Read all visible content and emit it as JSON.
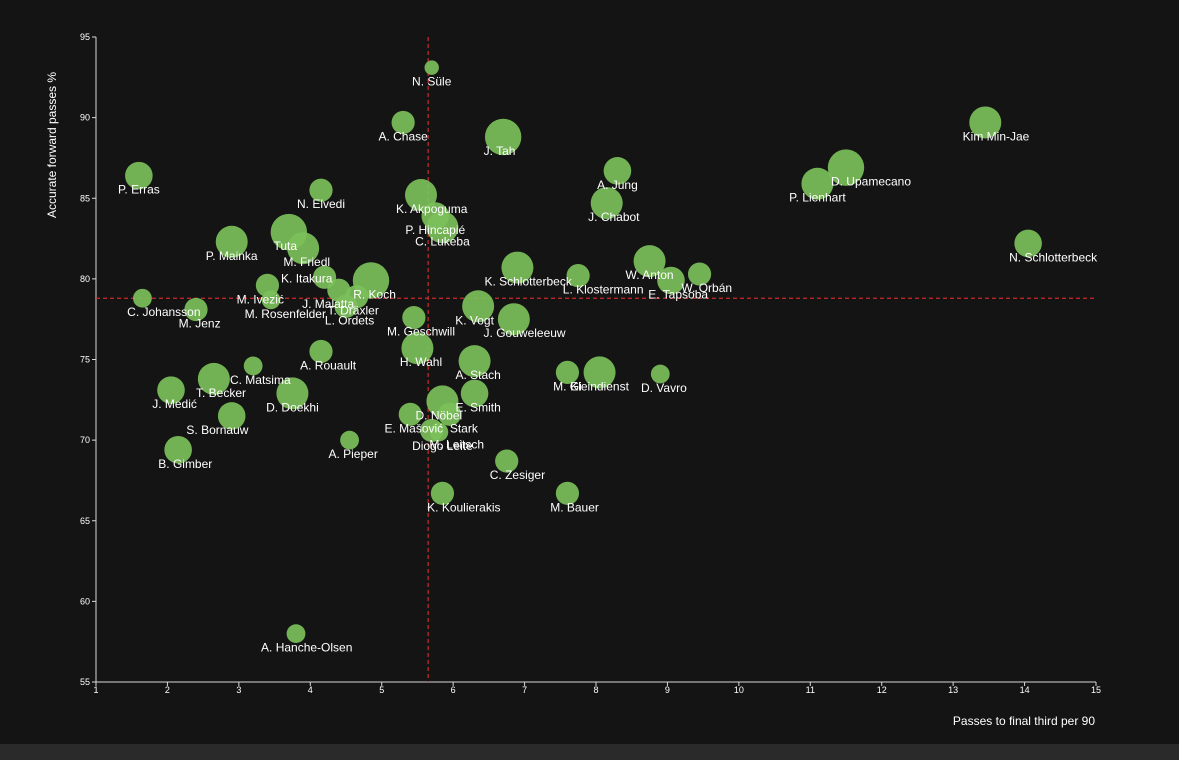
{
  "chart_data": {
    "type": "scatter",
    "xlabel": "Passes to final third per 90",
    "ylabel": "Accurate forward passes %",
    "xlim": [
      1,
      15
    ],
    "ylim": [
      55,
      95
    ],
    "xticks": [
      1,
      2,
      3,
      4,
      5,
      6,
      7,
      8,
      9,
      10,
      11,
      12,
      13,
      14,
      15
    ],
    "yticks": [
      55,
      60,
      65,
      70,
      75,
      80,
      85,
      90,
      95
    ],
    "reference_lines": {
      "x": 5.65,
      "y": 78.8,
      "style": "dashed",
      "color": "#cc2a2a"
    },
    "marker_color": "#7bc05a",
    "points": [
      {
        "name": "N. Süle",
        "x": 5.7,
        "y": 93.1,
        "size": 1
      },
      {
        "name": "A. Chase",
        "x": 5.3,
        "y": 89.7,
        "size": 3
      },
      {
        "name": "J. Tah",
        "x": 6.7,
        "y": 88.8,
        "size": 6
      },
      {
        "name": "Kim Min-Jae",
        "x": 13.45,
        "y": 89.7,
        "size": 5
      },
      {
        "name": "P. Erras",
        "x": 1.6,
        "y": 86.4,
        "size": 4
      },
      {
        "name": "A. Jung",
        "x": 8.3,
        "y": 86.7,
        "size": 4
      },
      {
        "name": "D. Upamecano",
        "x": 11.5,
        "y": 86.9,
        "size": 6
      },
      {
        "name": "P. Lienhart",
        "x": 11.1,
        "y": 85.9,
        "size": 5
      },
      {
        "name": "N. Elvedi",
        "x": 4.15,
        "y": 85.5,
        "size": 3
      },
      {
        "name": "K. Akpoguma",
        "x": 5.55,
        "y": 85.2,
        "size": 5
      },
      {
        "name": "J. Chabot",
        "x": 8.15,
        "y": 84.7,
        "size": 5
      },
      {
        "name": "P. Hincapié",
        "x": 5.75,
        "y": 83.9,
        "size": 4
      },
      {
        "name": "C. Lukeba",
        "x": 5.85,
        "y": 83.2,
        "size": 5
      },
      {
        "name": "P. Mainka",
        "x": 2.9,
        "y": 82.3,
        "size": 5
      },
      {
        "name": "Tuta",
        "x": 3.7,
        "y": 82.9,
        "size": 6
      },
      {
        "name": "M. Friedl",
        "x": 3.9,
        "y": 81.9,
        "size": 5
      },
      {
        "name": "K. Itakura",
        "x": 4.2,
        "y": 80.1,
        "size": 3
      },
      {
        "name": "N. Schlotterbeck",
        "x": 14.05,
        "y": 82.2,
        "size": 4
      },
      {
        "name": "W. Anton",
        "x": 8.75,
        "y": 81.1,
        "size": 5
      },
      {
        "name": "K. Schlotterbeck",
        "x": 6.9,
        "y": 80.7,
        "size": 5
      },
      {
        "name": "L. Klostermann",
        "x": 7.75,
        "y": 80.2,
        "size": 3
      },
      {
        "name": "W. Orbán",
        "x": 9.45,
        "y": 80.3,
        "size": 3
      },
      {
        "name": "E. Tapsoba",
        "x": 9.05,
        "y": 79.9,
        "size": 4
      },
      {
        "name": "J. Malatta",
        "x": 4.4,
        "y": 79.3,
        "size": 3
      },
      {
        "name": "R. Koch",
        "x": 4.85,
        "y": 79.9,
        "size": 6
      },
      {
        "name": "M. Ivezić",
        "x": 3.4,
        "y": 79.6,
        "size": 3
      },
      {
        "name": "C. Johansson",
        "x": 1.65,
        "y": 78.8,
        "size": 2
      },
      {
        "name": "M. Jenz",
        "x": 2.4,
        "y": 78.1,
        "size": 3
      },
      {
        "name": "M. Rosenfelder",
        "x": 3.45,
        "y": 78.7,
        "size": 2
      },
      {
        "name": "L. Ordets",
        "x": 4.5,
        "y": 78.3,
        "size": 3
      },
      {
        "name": "T. Dräxler",
        "x": 4.65,
        "y": 78.9,
        "size": 3
      },
      {
        "name": "K. Vogt",
        "x": 6.35,
        "y": 78.3,
        "size": 5
      },
      {
        "name": "J. Gouweleeuw",
        "x": 6.85,
        "y": 77.5,
        "size": 5
      },
      {
        "name": "M. Geschwill",
        "x": 5.45,
        "y": 77.6,
        "size": 3
      },
      {
        "name": "A. Rouault",
        "x": 4.15,
        "y": 75.5,
        "size": 3
      },
      {
        "name": "H. Wahl",
        "x": 5.5,
        "y": 75.7,
        "size": 5
      },
      {
        "name": "A. Stach",
        "x": 6.3,
        "y": 74.9,
        "size": 5
      },
      {
        "name": "C. Matsima",
        "x": 3.2,
        "y": 74.6,
        "size": 2
      },
      {
        "name": "T. Becker",
        "x": 2.65,
        "y": 73.8,
        "size": 5
      },
      {
        "name": "M. Gi",
        "x": 7.6,
        "y": 74.2,
        "size": 3
      },
      {
        "name": "Kleindienst",
        "x": 8.05,
        "y": 74.2,
        "size": 5
      },
      {
        "name": "D. Vavro",
        "x": 8.9,
        "y": 74.1,
        "size": 2
      },
      {
        "name": "J. Medić",
        "x": 2.05,
        "y": 73.1,
        "size": 4
      },
      {
        "name": "D. Doekhi",
        "x": 3.75,
        "y": 72.9,
        "size": 5
      },
      {
        "name": "E. Smith",
        "x": 6.3,
        "y": 72.9,
        "size": 4
      },
      {
        "name": "D. Nöbel",
        "x": 5.85,
        "y": 72.4,
        "size": 5
      },
      {
        "name": "Stark",
        "x": 5.95,
        "y": 71.6,
        "size": 3
      },
      {
        "name": "S. Bornauw",
        "x": 2.9,
        "y": 71.5,
        "size": 4
      },
      {
        "name": "E. Mašović",
        "x": 5.4,
        "y": 71.6,
        "size": 3
      },
      {
        "name": "M. Leitsch",
        "x": 5.7,
        "y": 70.6,
        "size": 3
      },
      {
        "name": "Diogo Leite",
        "x": 5.8,
        "y": 70.5,
        "size": 2
      },
      {
        "name": "A. Pieper",
        "x": 4.55,
        "y": 70.0,
        "size": 2
      },
      {
        "name": "B. Gimber",
        "x": 2.15,
        "y": 69.4,
        "size": 4
      },
      {
        "name": "C. Zesiger",
        "x": 6.75,
        "y": 68.7,
        "size": 3
      },
      {
        "name": "K. Koulierakis",
        "x": 5.85,
        "y": 66.7,
        "size": 3
      },
      {
        "name": "M. Bauer",
        "x": 7.6,
        "y": 66.7,
        "size": 3
      },
      {
        "name": "A. Hanche-Olsen",
        "x": 3.8,
        "y": 58.0,
        "size": 2
      }
    ],
    "labels": [
      {
        "text": "N. Süle",
        "x": 5.7,
        "y": 93.1,
        "pos": "below"
      },
      {
        "text": "A. Chase",
        "x": 5.3,
        "y": 89.7,
        "pos": "below"
      },
      {
        "text": "J. Tah",
        "x": 6.65,
        "y": 88.8,
        "pos": "below"
      },
      {
        "text": "Kim Min-Jae",
        "x": 13.6,
        "y": 89.7,
        "pos": "below"
      },
      {
        "text": "P. Erras",
        "x": 1.6,
        "y": 86.4,
        "pos": "below"
      },
      {
        "text": "A. Jung",
        "x": 8.3,
        "y": 86.7,
        "pos": "below"
      },
      {
        "text": "D. Upamecano",
        "x": 11.85,
        "y": 86.9,
        "pos": "below"
      },
      {
        "text": "P. Lienhart",
        "x": 11.1,
        "y": 85.9,
        "pos": "below"
      },
      {
        "text": "N. Elvedi",
        "x": 4.15,
        "y": 85.5,
        "pos": "below"
      },
      {
        "text": "K. Akpoguma",
        "x": 5.7,
        "y": 85.2,
        "pos": "below"
      },
      {
        "text": "J. Chabot",
        "x": 8.25,
        "y": 84.7,
        "pos": "below"
      },
      {
        "text": "P. Hincapié",
        "x": 5.75,
        "y": 83.9,
        "pos": "below"
      },
      {
        "text": "C. Lukeba",
        "x": 5.85,
        "y": 83.2,
        "pos": "below"
      },
      {
        "text": "P. Mainka",
        "x": 2.9,
        "y": 82.3,
        "pos": "below"
      },
      {
        "text": "Tuta",
        "x": 3.65,
        "y": 82.9,
        "pos": "below"
      },
      {
        "text": "M. Friedl",
        "x": 3.95,
        "y": 81.9,
        "pos": "below"
      },
      {
        "text": "K. Itakura",
        "x": 3.95,
        "y": 80.9,
        "pos": "below"
      },
      {
        "text": "N. Schlotterbeck",
        "x": 14.4,
        "y": 82.2,
        "pos": "below"
      },
      {
        "text": "W. Anton",
        "x": 8.75,
        "y": 81.1,
        "pos": "below"
      },
      {
        "text": "K. Schlotterbeck",
        "x": 7.05,
        "y": 80.7,
        "pos": "below"
      },
      {
        "text": "L. Klostermann",
        "x": 8.1,
        "y": 80.2,
        "pos": "below"
      },
      {
        "text": "W. Orbán",
        "x": 9.55,
        "y": 80.3,
        "pos": "below"
      },
      {
        "text": "E. Tapsoba",
        "x": 9.15,
        "y": 79.9,
        "pos": "below"
      },
      {
        "text": "J. Malatta",
        "x": 4.25,
        "y": 79.3,
        "pos": "below"
      },
      {
        "text": "R. Koch",
        "x": 4.9,
        "y": 79.9,
        "pos": "below"
      },
      {
        "text": "M. Ivezić",
        "x": 3.3,
        "y": 79.6,
        "pos": "below"
      },
      {
        "text": "C. Johansson",
        "x": 1.95,
        "y": 78.8,
        "pos": "below"
      },
      {
        "text": "M. Jenz",
        "x": 2.45,
        "y": 78.1,
        "pos": "below"
      },
      {
        "text": "M. Rosenfelder",
        "x": 3.65,
        "y": 78.7,
        "pos": "below"
      },
      {
        "text": "L. Ordets",
        "x": 4.55,
        "y": 78.3,
        "pos": "below"
      },
      {
        "text": "T. Dräxler",
        "x": 4.6,
        "y": 78.9,
        "pos": "below"
      },
      {
        "text": "K. Vogt",
        "x": 6.3,
        "y": 78.3,
        "pos": "below"
      },
      {
        "text": "J. Gouweleeuw",
        "x": 7.0,
        "y": 77.5,
        "pos": "below"
      },
      {
        "text": "M. Geschwill",
        "x": 5.55,
        "y": 77.6,
        "pos": "below"
      },
      {
        "text": "A. Rouault",
        "x": 4.25,
        "y": 75.5,
        "pos": "below"
      },
      {
        "text": "H. Wahl",
        "x": 5.55,
        "y": 75.7,
        "pos": "below"
      },
      {
        "text": "A. Stach",
        "x": 6.35,
        "y": 74.9,
        "pos": "below"
      },
      {
        "text": "C. Matsima",
        "x": 3.3,
        "y": 74.6,
        "pos": "below"
      },
      {
        "text": "T. Becker",
        "x": 2.75,
        "y": 73.8,
        "pos": "below"
      },
      {
        "text": "M. Gi",
        "x": 7.6,
        "y": 74.2,
        "pos": "below"
      },
      {
        "text": "Kleindienst",
        "x": 8.05,
        "y": 74.2,
        "pos": "below"
      },
      {
        "text": "D. Vavro",
        "x": 8.95,
        "y": 74.1,
        "pos": "below"
      },
      {
        "text": "J. Medić",
        "x": 2.1,
        "y": 73.1,
        "pos": "below"
      },
      {
        "text": "D. Doekhi",
        "x": 3.75,
        "y": 72.9,
        "pos": "below"
      },
      {
        "text": "E. Smith",
        "x": 6.35,
        "y": 72.9,
        "pos": "below"
      },
      {
        "text": "D. Nöbel",
        "x": 5.8,
        "y": 72.4,
        "pos": "below"
      },
      {
        "text": "Stark",
        "x": 6.15,
        "y": 71.6,
        "pos": "below"
      },
      {
        "text": "S. Bornauw",
        "x": 2.7,
        "y": 71.5,
        "pos": "below"
      },
      {
        "text": "E. Mašović",
        "x": 5.45,
        "y": 71.6,
        "pos": "below"
      },
      {
        "text": "M. Leitsch",
        "x": 6.05,
        "y": 70.6,
        "pos": "below"
      },
      {
        "text": "Diogo Leite",
        "x": 5.85,
        "y": 70.5,
        "pos": "below"
      },
      {
        "text": "A. Pieper",
        "x": 4.6,
        "y": 70.0,
        "pos": "below"
      },
      {
        "text": "B. Gimber",
        "x": 2.25,
        "y": 69.4,
        "pos": "below"
      },
      {
        "text": "C. Zesiger",
        "x": 6.9,
        "y": 68.7,
        "pos": "below"
      },
      {
        "text": "K. Koulierakis",
        "x": 6.15,
        "y": 66.7,
        "pos": "below"
      },
      {
        "text": "M. Bauer",
        "x": 7.7,
        "y": 66.7,
        "pos": "below"
      },
      {
        "text": "A. Hanche-Olsen",
        "x": 3.95,
        "y": 58.0,
        "pos": "below"
      }
    ],
    "grid": false
  }
}
